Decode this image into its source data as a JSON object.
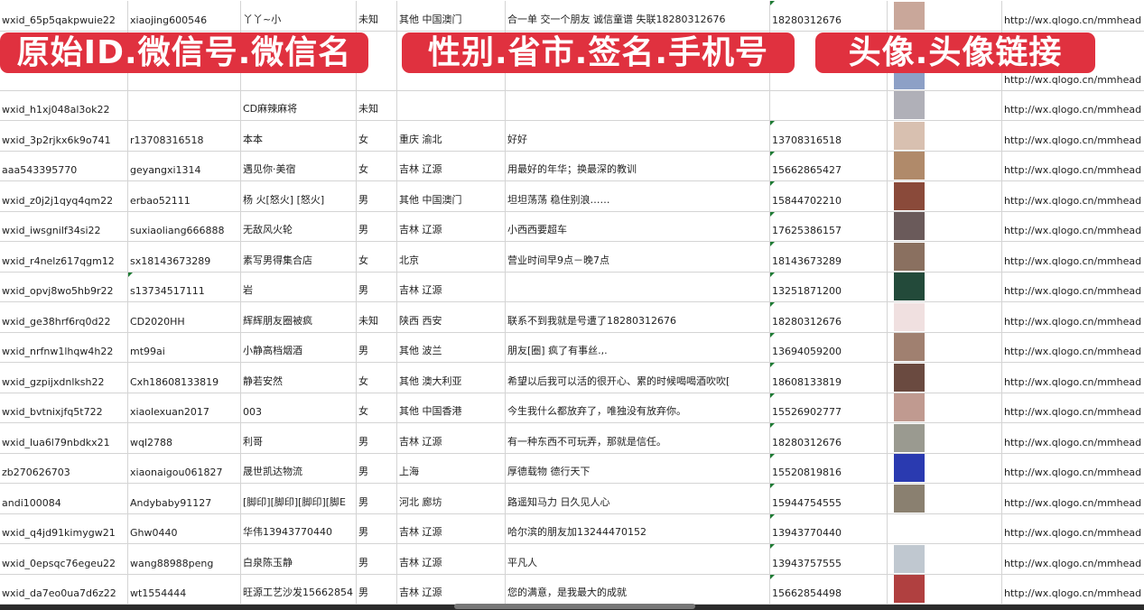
{
  "overlays": [
    "原始ID.微信号.微信名",
    "性别.省市.签名.手机号",
    "头像.头像链接"
  ],
  "avatar_colors": [
    "#c9a79a",
    "#8da0c6",
    "#b0b0b8",
    "#d8c0b0",
    "#b08a6a",
    "#8a4a3a",
    "#6a5a5a",
    "#8a7060",
    "#234a3a",
    "#f0e0e0",
    "#a08070",
    "#6a4a40",
    "#c09a90",
    "#9a9a90",
    "#2a3ab0",
    "#8a8070",
    "#ffffff",
    "#c0c8d0",
    "#b04040"
  ],
  "rows": [
    {
      "id": "wxid_65p5qakpwuie22",
      "wx": "xiaojing600546",
      "name": "丫丫~小",
      "gender": "未知",
      "region": "其他 中国澳门",
      "sig": "合一单 交一个朋友 诚信童谱 失联18280312676",
      "phone": "18280312676",
      "url": "http://wx.qlogo.cn/mmhead"
    },
    {
      "id": "",
      "wx": "",
      "name": "",
      "gender": "",
      "region": "",
      "sig": "",
      "phone": "",
      "url": "http://wx.qlogo.cn/mmhead"
    },
    {
      "id": "wxid_h1xj048al3ok22",
      "wx": "",
      "name": "CD麻辣麻将",
      "gender": "未知",
      "region": "",
      "sig": "",
      "phone": "",
      "url": "http://wx.qlogo.cn/mmhead"
    },
    {
      "id": "wxid_3p2rjkx6k9o741",
      "wx": "r13708316518",
      "name": "本本",
      "gender": "女",
      "region": "重庆 渝北",
      "sig": "好好",
      "phone": "13708316518",
      "url": "http://wx.qlogo.cn/mmhead"
    },
    {
      "id": "aaa543395770",
      "wx": "geyangxi1314",
      "name": "遇见你·美宿",
      "gender": "女",
      "region": "吉林 辽源",
      "sig": "用最好的年华；换最深的教训",
      "phone": "15662865427",
      "url": "http://wx.qlogo.cn/mmhead"
    },
    {
      "id": "wxid_z0j2j1qyq4qm22",
      "wx": "erbao52111",
      "name": "杨 火[怒火] [怒火]",
      "gender": "男",
      "region": "其他 中国澳门",
      "sig": "坦坦荡荡 稳住别浪……",
      "phone": "15844702210",
      "url": "http://wx.qlogo.cn/mmhead"
    },
    {
      "id": "wxid_iwsgnilf34si22",
      "wx": "suxiaoliang666888",
      "name": "无敌风火轮",
      "gender": "男",
      "region": "吉林 辽源",
      "sig": "小西西要超车",
      "phone": "17625386157",
      "url": "http://wx.qlogo.cn/mmhead"
    },
    {
      "id": "wxid_r4nelz617qgm12",
      "wx": "sx18143673289",
      "name": "素写男得集合店",
      "gender": "女",
      "region": "北京",
      "sig": "营业时间早9点－晚7点",
      "phone": "18143673289",
      "url": "http://wx.qlogo.cn/mmhead"
    },
    {
      "id": "wxid_opvj8wo5hb9r22",
      "wx": "s13734517111",
      "name": "岩",
      "gender": "男",
      "region": "吉林 辽源",
      "sig": "",
      "phone": "13251871200",
      "url": "http://wx.qlogo.cn/mmhead"
    },
    {
      "id": "wxid_ge38hrf6rq0d22",
      "wx": "CD2020HH",
      "name": "辉辉朋友圈被疯",
      "gender": "未知",
      "region": "陕西 西安",
      "sig": "联系不到我就是号遭了18280312676",
      "phone": "18280312676",
      "url": "http://wx.qlogo.cn/mmhead"
    },
    {
      "id": "wxid_nrfnw1lhqw4h22",
      "wx": "mt99ai",
      "name": "小静高档烟酒",
      "gender": "男",
      "region": "其他 波兰",
      "sig": "朋友[圈] 疯了有事丝.,.",
      "phone": "13694059200",
      "url": "http://wx.qlogo.cn/mmhead"
    },
    {
      "id": "wxid_gzpijxdnlksh22",
      "wx": "Cxh18608133819",
      "name": "静若安然",
      "gender": "女",
      "region": "其他 澳大利亚",
      "sig": "希望以后我可以活的很开心、累的时候喝喝酒吹吹[",
      "phone": "18608133819",
      "url": "http://wx.qlogo.cn/mmhead"
    },
    {
      "id": "wxid_bvtnixjfq5t722",
      "wx": "xiaolexuan2017",
      "name": "003",
      "gender": "女",
      "region": "其他 中国香港",
      "sig": "今生我什么都放弃了，唯独没有放弃你。",
      "phone": "15526902777",
      "url": "http://wx.qlogo.cn/mmhead"
    },
    {
      "id": "wxid_lua6l79nbdkx21",
      "wx": "wql2788",
      "name": "利哥",
      "gender": "男",
      "region": "吉林 辽源",
      "sig": "有一种东西不可玩弄，那就是信任。",
      "phone": "18280312676",
      "url": "http://wx.qlogo.cn/mmhead"
    },
    {
      "id": "zb270626703",
      "wx": "xiaonaigou061827",
      "name": "晟世凯达物流",
      "gender": "男",
      "region": "上海",
      "sig": "厚德载物 德行天下",
      "phone": "15520819816",
      "url": "http://wx.qlogo.cn/mmhead"
    },
    {
      "id": "andi100084",
      "wx": "Andybaby91127",
      "name": "[脚印][脚印][脚印][脚E",
      "gender": "男",
      "region": "河北 廊坊",
      "sig": "路遥知马力 日久见人心",
      "phone": "15944754555",
      "url": "http://wx.qlogo.cn/mmhead"
    },
    {
      "id": "wxid_q4jd91kimygw21",
      "wx": "Ghw0440",
      "name": "华伟13943770440",
      "gender": "男",
      "region": "吉林 辽源",
      "sig": "哈尔滨的朋友加13244470152",
      "phone": "13943770440",
      "url": "http://wx.qlogo.cn/mmhead"
    },
    {
      "id": "wxid_0epsqc76egeu22",
      "wx": "wang88988peng",
      "name": "白泉陈玉静",
      "gender": "男",
      "region": "吉林 辽源",
      "sig": "平凡人",
      "phone": "13943757555",
      "url": "http://wx.qlogo.cn/mmhead"
    },
    {
      "id": "wxid_da7eo0ua7d6z22",
      "wx": "wt1554444",
      "name": "旺源工艺沙发15662854",
      "gender": "男",
      "region": "吉林 辽源",
      "sig": "您的满意，是我最大的成就",
      "phone": "15662854498",
      "url": "http://wx.qlogo.cn/mmhead"
    }
  ]
}
